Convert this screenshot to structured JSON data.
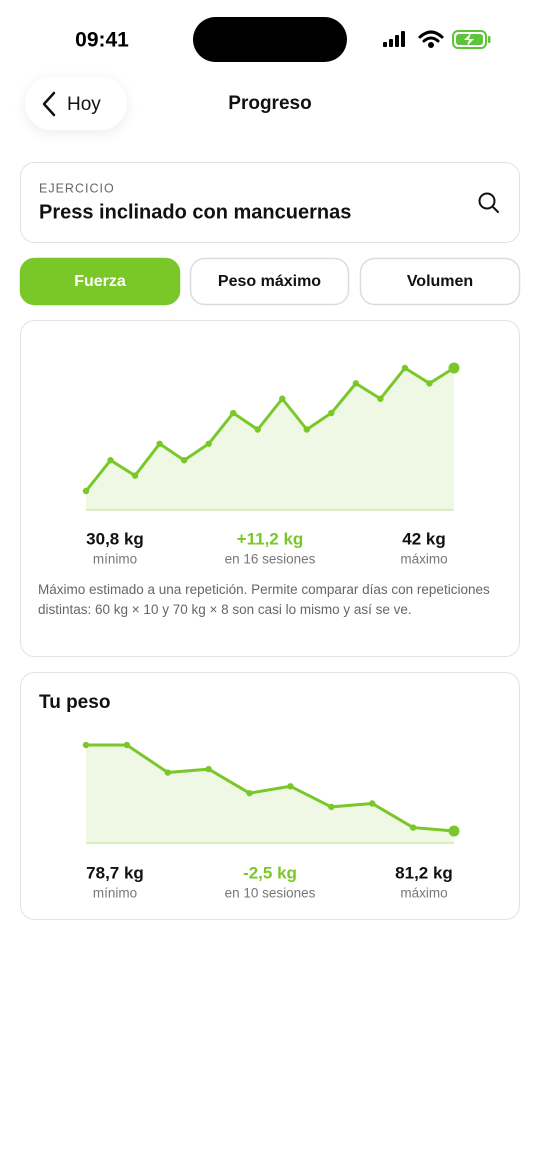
{
  "status_bar": {
    "time": "09:41"
  },
  "nav": {
    "back": "Hoy",
    "title": "Progreso"
  },
  "exercise": {
    "label": "EJERCICIO",
    "name": "Press inclinado con mancuernas"
  },
  "tabs": {
    "items": [
      "Fuerza",
      "Peso máximo",
      "Volumen"
    ],
    "active": 0
  },
  "chart_data": [
    {
      "type": "line",
      "color": "#7ac72a",
      "values": [
        30.8,
        33.6,
        32.2,
        35.1,
        33.6,
        35.1,
        37.9,
        36.4,
        39.2,
        36.4,
        37.9,
        40.6,
        39.2,
        42.0,
        40.6,
        42.0
      ]
    },
    {
      "type": "line",
      "color": "#7ac72a",
      "values": [
        81.2,
        81.2,
        80.4,
        80.5,
        79.8,
        80.0,
        79.4,
        79.5,
        78.8,
        78.7
      ]
    }
  ],
  "strength_card": {
    "stats": [
      {
        "value": "30,8 kg",
        "label": "mínimo"
      },
      {
        "value": "+11,2 kg",
        "label": "en 16 sesiones"
      },
      {
        "value": "42 kg",
        "label": "máximo"
      }
    ],
    "note": "Máximo estimado a una repetición. Permite comparar días con repeticiones distintas: 60 kg × 10 y 70 kg × 8 son casi lo mismo y así se ve."
  },
  "weight_card": {
    "title": "Tu peso",
    "stats": [
      {
        "value": "78,7 kg",
        "label": "mínimo"
      },
      {
        "value": "-2,5 kg",
        "label": "en 10 sesiones"
      },
      {
        "value": "81,2 kg",
        "label": "máximo"
      }
    ]
  }
}
